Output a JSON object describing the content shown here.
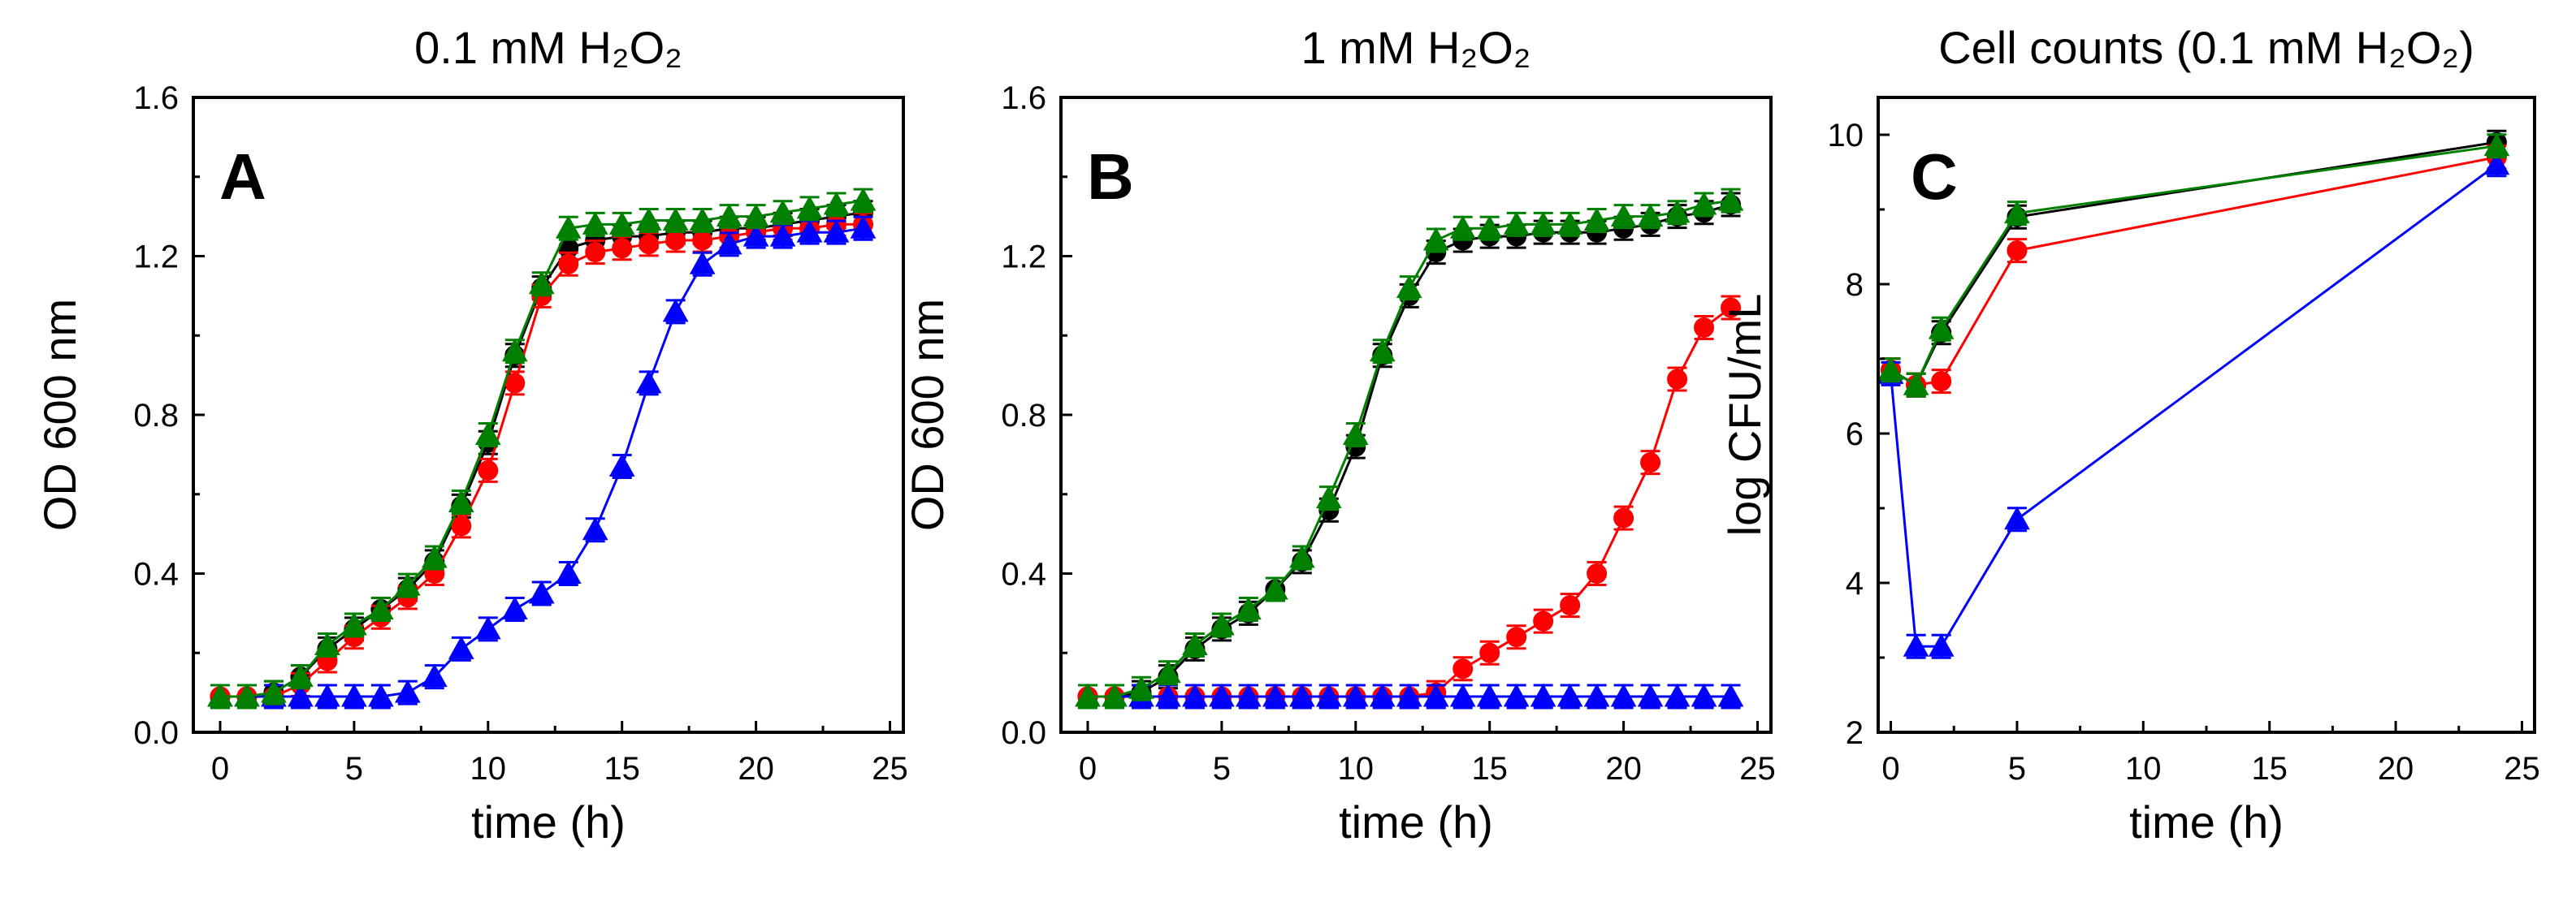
{
  "chart_data": [
    {
      "type": "line",
      "panel_letter": "A",
      "title": "0.1 mM H₂O₂",
      "xlabel": "time (h)",
      "ylabel": "OD 600 nm",
      "xlim": [
        -1,
        25.5
      ],
      "ylim": [
        0,
        1.6
      ],
      "xticks": [
        0,
        5,
        10,
        15,
        20,
        25
      ],
      "yticks": [
        0.0,
        0.4,
        0.8,
        1.2,
        1.6
      ],
      "ytick_labels": [
        "0.0",
        "0.4",
        "0.8",
        "1.2",
        "1.6"
      ],
      "series": [
        {
          "name": "black",
          "color": "#000000",
          "marker": "circle",
          "x": [
            0,
            1,
            2,
            3,
            4,
            5,
            6,
            7,
            8,
            9,
            10,
            11,
            12,
            13,
            14,
            15,
            16,
            17,
            18,
            19,
            20,
            21,
            22,
            23,
            24
          ],
          "y": [
            0.09,
            0.09,
            0.1,
            0.14,
            0.21,
            0.26,
            0.31,
            0.36,
            0.43,
            0.57,
            0.73,
            0.95,
            1.12,
            1.22,
            1.24,
            1.25,
            1.25,
            1.26,
            1.26,
            1.27,
            1.27,
            1.28,
            1.29,
            1.3,
            1.31
          ]
        },
        {
          "name": "red",
          "color": "#ff0000",
          "marker": "circle",
          "x": [
            0,
            1,
            2,
            3,
            4,
            5,
            6,
            7,
            8,
            9,
            10,
            11,
            12,
            13,
            14,
            15,
            16,
            17,
            18,
            19,
            20,
            21,
            22,
            23,
            24
          ],
          "y": [
            0.09,
            0.09,
            0.09,
            0.12,
            0.18,
            0.24,
            0.29,
            0.34,
            0.4,
            0.52,
            0.66,
            0.88,
            1.1,
            1.18,
            1.21,
            1.22,
            1.23,
            1.24,
            1.24,
            1.25,
            1.26,
            1.27,
            1.27,
            1.28,
            1.28
          ]
        },
        {
          "name": "blue",
          "color": "#0000ff",
          "marker": "triangle",
          "x": [
            0,
            1,
            2,
            3,
            4,
            5,
            6,
            7,
            8,
            9,
            10,
            11,
            12,
            13,
            14,
            15,
            16,
            17,
            18,
            19,
            20,
            21,
            22,
            23,
            24
          ],
          "y": [
            0.09,
            0.09,
            0.09,
            0.09,
            0.09,
            0.09,
            0.09,
            0.1,
            0.14,
            0.21,
            0.26,
            0.31,
            0.35,
            0.4,
            0.51,
            0.67,
            0.88,
            1.06,
            1.18,
            1.23,
            1.25,
            1.25,
            1.26,
            1.26,
            1.27
          ]
        },
        {
          "name": "green",
          "color": "#008000",
          "marker": "triangle",
          "x": [
            0,
            1,
            2,
            3,
            4,
            5,
            6,
            7,
            8,
            9,
            10,
            11,
            12,
            13,
            14,
            15,
            16,
            17,
            18,
            19,
            20,
            21,
            22,
            23,
            24
          ],
          "y": [
            0.09,
            0.09,
            0.1,
            0.14,
            0.22,
            0.27,
            0.31,
            0.37,
            0.44,
            0.58,
            0.75,
            0.96,
            1.13,
            1.27,
            1.28,
            1.28,
            1.29,
            1.29,
            1.29,
            1.3,
            1.3,
            1.31,
            1.32,
            1.33,
            1.34
          ]
        }
      ]
    },
    {
      "type": "line",
      "panel_letter": "B",
      "title": "1 mM H₂O₂",
      "xlabel": "time (h)",
      "ylabel": "OD 600 nm",
      "xlim": [
        -1,
        25.5
      ],
      "ylim": [
        0,
        1.6
      ],
      "xticks": [
        0,
        5,
        10,
        15,
        20,
        25
      ],
      "yticks": [
        0.0,
        0.4,
        0.8,
        1.2,
        1.6
      ],
      "ytick_labels": [
        "0.0",
        "0.4",
        "0.8",
        "1.2",
        "1.6"
      ],
      "series": [
        {
          "name": "black",
          "color": "#000000",
          "marker": "circle",
          "x": [
            0,
            1,
            2,
            3,
            4,
            5,
            6,
            7,
            8,
            9,
            10,
            11,
            12,
            13,
            14,
            15,
            16,
            17,
            18,
            19,
            20,
            21,
            22,
            23,
            24
          ],
          "y": [
            0.09,
            0.09,
            0.1,
            0.14,
            0.21,
            0.26,
            0.3,
            0.36,
            0.43,
            0.56,
            0.72,
            0.95,
            1.1,
            1.21,
            1.24,
            1.25,
            1.25,
            1.26,
            1.26,
            1.26,
            1.27,
            1.28,
            1.3,
            1.31,
            1.33
          ]
        },
        {
          "name": "red",
          "color": "#ff0000",
          "marker": "circle",
          "x": [
            0,
            1,
            2,
            3,
            4,
            5,
            6,
            7,
            8,
            9,
            10,
            11,
            12,
            13,
            14,
            15,
            16,
            17,
            18,
            19,
            20,
            21,
            22,
            23,
            24
          ],
          "y": [
            0.09,
            0.09,
            0.09,
            0.09,
            0.09,
            0.09,
            0.09,
            0.09,
            0.09,
            0.09,
            0.09,
            0.09,
            0.09,
            0.1,
            0.16,
            0.2,
            0.24,
            0.28,
            0.32,
            0.4,
            0.54,
            0.68,
            0.89,
            1.02,
            1.07
          ]
        },
        {
          "name": "blue",
          "color": "#0000ff",
          "marker": "triangle",
          "x": [
            0,
            1,
            2,
            3,
            4,
            5,
            6,
            7,
            8,
            9,
            10,
            11,
            12,
            13,
            14,
            15,
            16,
            17,
            18,
            19,
            20,
            21,
            22,
            23,
            24
          ],
          "y": [
            0.09,
            0.09,
            0.09,
            0.09,
            0.09,
            0.09,
            0.09,
            0.09,
            0.09,
            0.09,
            0.09,
            0.09,
            0.09,
            0.09,
            0.09,
            0.09,
            0.09,
            0.09,
            0.09,
            0.09,
            0.09,
            0.09,
            0.09,
            0.09,
            0.09
          ]
        },
        {
          "name": "green",
          "color": "#008000",
          "marker": "triangle",
          "x": [
            0,
            1,
            2,
            3,
            4,
            5,
            6,
            7,
            8,
            9,
            10,
            11,
            12,
            13,
            14,
            15,
            16,
            17,
            18,
            19,
            20,
            21,
            22,
            23,
            24
          ],
          "y": [
            0.09,
            0.09,
            0.11,
            0.15,
            0.22,
            0.27,
            0.31,
            0.36,
            0.44,
            0.59,
            0.75,
            0.96,
            1.12,
            1.24,
            1.27,
            1.27,
            1.28,
            1.28,
            1.28,
            1.29,
            1.3,
            1.3,
            1.31,
            1.33,
            1.34
          ]
        }
      ]
    },
    {
      "type": "line",
      "panel_letter": "C",
      "title": "Cell counts (0.1 mM H₂O₂)",
      "xlabel": "time (h)",
      "ylabel": "log CFU/mL",
      "xlim": [
        -0.5,
        25.5
      ],
      "ylim": [
        2,
        10.5
      ],
      "xticks": [
        0,
        5,
        10,
        15,
        20,
        25
      ],
      "yticks": [
        2,
        4,
        6,
        8,
        10
      ],
      "ytick_labels": [
        "2",
        "4",
        "6",
        "8",
        "10"
      ],
      "series": [
        {
          "name": "black",
          "color": "#000000",
          "marker": "circle",
          "x": [
            0,
            1,
            2,
            5,
            24
          ],
          "y": [
            6.85,
            6.65,
            7.35,
            8.9,
            9.9
          ]
        },
        {
          "name": "red",
          "color": "#ff0000",
          "marker": "circle",
          "x": [
            0,
            1,
            2,
            5,
            24
          ],
          "y": [
            6.85,
            6.65,
            6.7,
            8.45,
            9.7
          ]
        },
        {
          "name": "blue",
          "color": "#0000ff",
          "marker": "triangle",
          "x": [
            0,
            1,
            2,
            5,
            24
          ],
          "y": [
            6.8,
            3.15,
            3.15,
            4.85,
            9.6
          ]
        },
        {
          "name": "green",
          "color": "#008000",
          "marker": "triangle",
          "x": [
            0,
            1,
            2,
            5,
            24
          ],
          "y": [
            6.85,
            6.65,
            7.4,
            8.95,
            9.85
          ]
        }
      ]
    }
  ]
}
